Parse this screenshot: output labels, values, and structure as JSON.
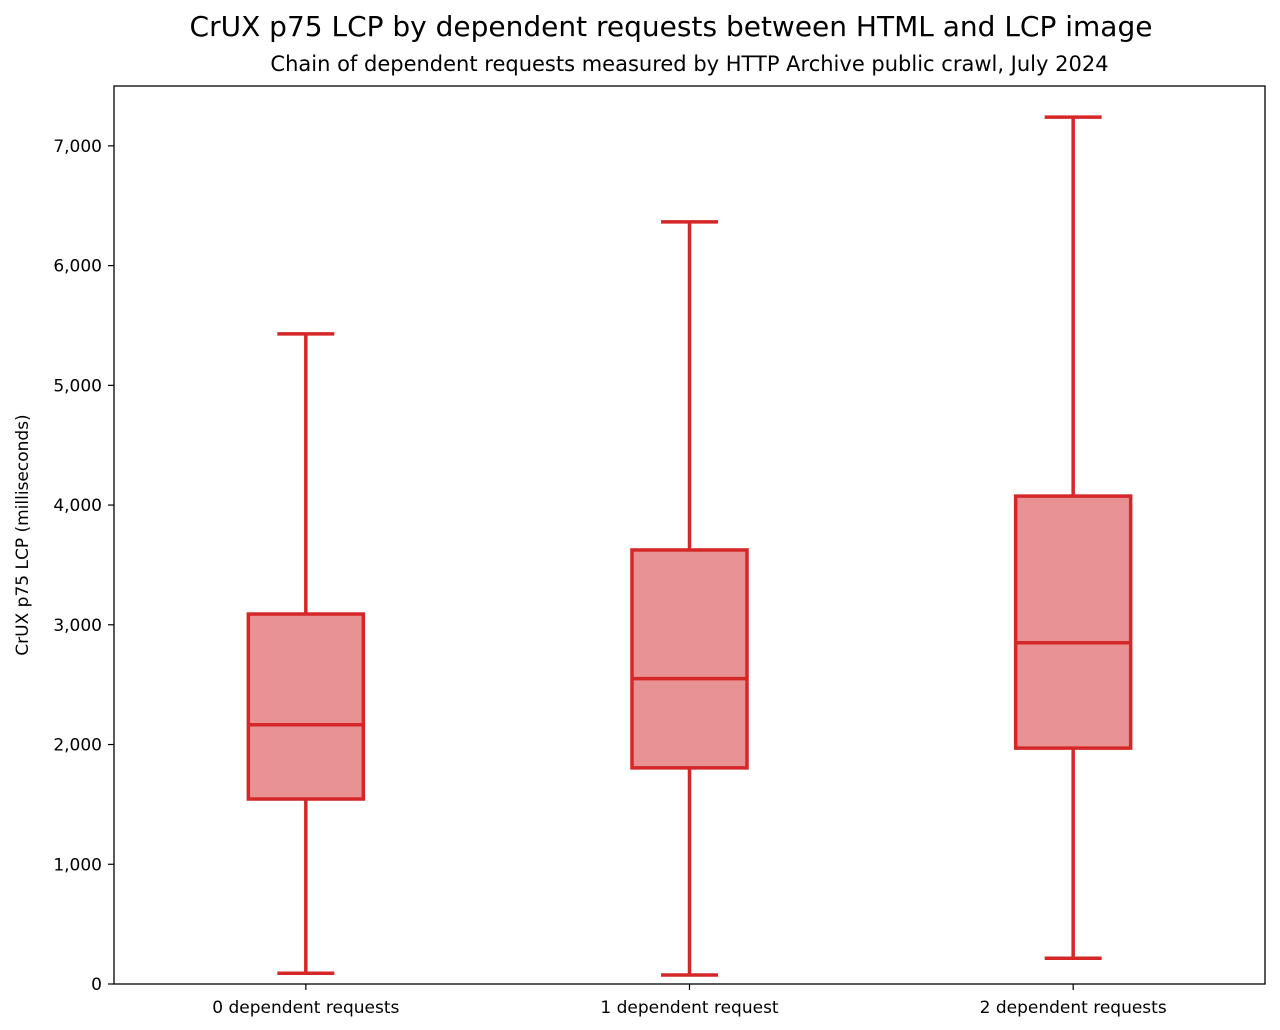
{
  "chart_data": {
    "type": "box",
    "title": "CrUX p75 LCP by dependent requests between HTML and LCP image",
    "subtitle": "Chain of dependent requests measured by HTTP Archive public crawl, July 2024",
    "xlabel": "",
    "ylabel": "CrUX p75 LCP (milliseconds)",
    "ylim": [
      0,
      7500
    ],
    "yticks": [
      0,
      1000,
      2000,
      3000,
      4000,
      5000,
      6000,
      7000
    ],
    "ytick_labels": [
      "0",
      "1,000",
      "2,000",
      "3,000",
      "4,000",
      "5,000",
      "6,000",
      "7,000"
    ],
    "grid": false,
    "categories": [
      "0 dependent requests",
      "1 dependent request",
      "2 dependent requests"
    ],
    "boxes": [
      {
        "whisker_low": 90,
        "q1": 1545,
        "median": 2165,
        "q3": 3090,
        "whisker_high": 5430
      },
      {
        "whisker_low": 75,
        "q1": 1805,
        "median": 2550,
        "q3": 3625,
        "whisker_high": 6365
      },
      {
        "whisker_low": 215,
        "q1": 1970,
        "median": 2850,
        "q3": 4075,
        "whisker_high": 7240
      }
    ],
    "colors": {
      "line": "#d62728",
      "fill": "#e99293"
    }
  }
}
